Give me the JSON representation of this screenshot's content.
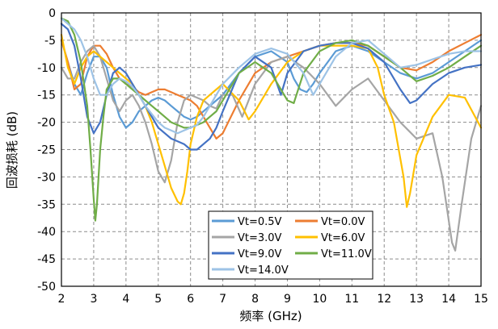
{
  "chart_data": {
    "type": "line",
    "title": "",
    "xlabel": "频率 (GHz)",
    "ylabel": "回波损耗 (dB)",
    "xlim": [
      2,
      15
    ],
    "ylim": [
      -50,
      0
    ],
    "xticks": [
      2,
      3,
      4,
      5,
      6,
      7,
      8,
      9,
      10,
      11,
      12,
      13,
      14,
      15
    ],
    "yticks": [
      0,
      -5,
      -10,
      -15,
      -20,
      -25,
      -30,
      -35,
      -40,
      -45,
      -50
    ],
    "grid": true,
    "legend_position": "bottom-center",
    "series": [
      {
        "name": "Vt=0.5V",
        "color": "#5b9bd5",
        "x": [
          2.0,
          2.2,
          2.4,
          2.6,
          2.8,
          3.0,
          3.2,
          3.4,
          3.6,
          3.8,
          4.0,
          4.2,
          4.4,
          4.6,
          4.8,
          5.0,
          5.2,
          5.4,
          5.6,
          5.8,
          6.0,
          6.2,
          6.4,
          6.6,
          6.8,
          7.0,
          7.5,
          8.0,
          8.5,
          9.0,
          9.2,
          9.4,
          9.6,
          9.8,
          10.0,
          10.5,
          11.0,
          11.5,
          12.0,
          12.5,
          13.0,
          13.5,
          14.0,
          14.5,
          15.0
        ],
        "y": [
          -5,
          -9,
          -13,
          -15,
          -11,
          -8,
          -8,
          -10,
          -15,
          -19,
          -21,
          -20,
          -18,
          -17,
          -16,
          -15.5,
          -16,
          -17,
          -18,
          -19,
          -19.5,
          -19,
          -18,
          -17,
          -16,
          -15,
          -11,
          -8,
          -7,
          -9,
          -12,
          -14,
          -14.5,
          -13,
          -11,
          -7,
          -6,
          -7,
          -9,
          -11,
          -12,
          -11,
          -9,
          -7,
          -5
        ]
      },
      {
        "name": "Vt=0.0V",
        "color": "#ed7d31",
        "x": [
          2.0,
          2.2,
          2.4,
          2.6,
          2.8,
          3.0,
          3.2,
          3.4,
          3.6,
          3.8,
          4.0,
          4.2,
          4.4,
          4.6,
          4.8,
          5.0,
          5.2,
          5.4,
          5.6,
          5.8,
          6.0,
          6.2,
          6.4,
          6.6,
          6.8,
          7.0,
          7.5,
          8.0,
          8.5,
          9.0,
          9.5,
          10.0,
          10.5,
          11.0,
          11.5,
          12.0,
          12.5,
          13.0,
          13.5,
          14.0,
          14.5,
          15.0
        ],
        "y": [
          -5,
          -9,
          -14,
          -13,
          -8,
          -6,
          -6,
          -7.5,
          -10,
          -12,
          -13,
          -13.5,
          -14.5,
          -15,
          -14.5,
          -14,
          -14,
          -14.5,
          -15,
          -15.5,
          -16,
          -17,
          -19,
          -21,
          -23,
          -22,
          -16,
          -11,
          -9,
          -8,
          -7,
          -6,
          -5.5,
          -5.5,
          -6,
          -8,
          -10,
          -10.5,
          -9,
          -7,
          -5.5,
          -4
        ]
      },
      {
        "name": "Vt=3.0V",
        "color": "#a5a5a5",
        "x": [
          2.0,
          2.2,
          2.4,
          2.6,
          2.8,
          3.0,
          3.2,
          3.4,
          3.6,
          3.8,
          4.0,
          4.2,
          4.4,
          4.6,
          4.8,
          5.0,
          5.2,
          5.4,
          5.6,
          5.8,
          6.0,
          6.2,
          6.4,
          6.6,
          6.8,
          7.0,
          7.3,
          7.6,
          8.0,
          8.5,
          9.0,
          9.5,
          10.0,
          10.5,
          11.0,
          11.5,
          12.0,
          12.5,
          13.0,
          13.5,
          13.8,
          14.0,
          14.1,
          14.2,
          14.4,
          14.7,
          15.0
        ],
        "y": [
          -10,
          -12,
          -12,
          -9,
          -7,
          -6,
          -8,
          -12,
          -16,
          -18,
          -16,
          -15,
          -17,
          -20,
          -24,
          -29,
          -31,
          -27,
          -20,
          -16,
          -15,
          -15.5,
          -16,
          -17,
          -17.5,
          -15,
          -15,
          -19,
          -13,
          -9,
          -8,
          -10,
          -13,
          -17,
          -14,
          -12,
          -16,
          -20,
          -23,
          -22,
          -30,
          -38,
          -42,
          -43.5,
          -35,
          -23,
          -17
        ]
      },
      {
        "name": "Vt=6.0V",
        "color": "#ffc000",
        "x": [
          2.0,
          2.2,
          2.4,
          2.6,
          2.8,
          3.0,
          3.2,
          3.4,
          3.6,
          3.8,
          4.0,
          4.2,
          4.4,
          4.6,
          4.8,
          5.0,
          5.2,
          5.4,
          5.6,
          5.7,
          5.8,
          5.9,
          6.0,
          6.2,
          6.4,
          6.6,
          6.8,
          7.0,
          7.5,
          7.8,
          8.0,
          8.5,
          9.0,
          9.5,
          10.0,
          10.5,
          11.0,
          11.5,
          11.8,
          12.0,
          12.3,
          12.6,
          12.7,
          12.8,
          13.0,
          13.5,
          14.0,
          14.5,
          15.0
        ],
        "y": [
          -4,
          -10,
          -13,
          -10,
          -8,
          -7,
          -8,
          -9,
          -10,
          -11,
          -12,
          -13,
          -15,
          -17,
          -20,
          -24,
          -28,
          -32,
          -34.5,
          -35,
          -33,
          -29,
          -24,
          -19,
          -16,
          -15,
          -14,
          -13,
          -16,
          -19.5,
          -18,
          -13,
          -9,
          -7,
          -6,
          -6,
          -6,
          -6.5,
          -10,
          -15,
          -20,
          -30,
          -35.5,
          -33,
          -26,
          -19,
          -15,
          -15.5,
          -21
        ]
      },
      {
        "name": "Vt=9.0V",
        "color": "#4472c4",
        "x": [
          2.0,
          2.2,
          2.4,
          2.6,
          2.8,
          3.0,
          3.2,
          3.4,
          3.6,
          3.8,
          4.0,
          4.2,
          4.4,
          4.6,
          4.8,
          5.0,
          5.2,
          5.4,
          5.6,
          5.8,
          6.0,
          6.2,
          6.4,
          6.6,
          6.8,
          7.0,
          7.5,
          8.0,
          8.5,
          8.8,
          9.0,
          9.5,
          10.0,
          10.5,
          11.0,
          11.5,
          12.0,
          12.5,
          12.8,
          13.0,
          13.5,
          14.0,
          14.5,
          15.0
        ],
        "y": [
          -2,
          -3,
          -6,
          -12,
          -19,
          -22,
          -20,
          -15,
          -11,
          -10,
          -11,
          -13,
          -15,
          -17,
          -19,
          -21,
          -22,
          -23,
          -23.5,
          -24,
          -25,
          -25,
          -24,
          -23,
          -21,
          -18,
          -11,
          -8,
          -10,
          -15,
          -11,
          -7,
          -6,
          -5.5,
          -5.5,
          -6.5,
          -9,
          -14,
          -16.5,
          -16,
          -13,
          -11,
          -10,
          -9.5
        ]
      },
      {
        "name": "Vt=11.0V",
        "color": "#70ad47",
        "x": [
          2.0,
          2.2,
          2.4,
          2.6,
          2.8,
          2.9,
          3.0,
          3.05,
          3.1,
          3.2,
          3.3,
          3.4,
          3.6,
          3.8,
          4.0,
          4.2,
          4.4,
          4.6,
          4.8,
          5.0,
          5.2,
          5.4,
          5.6,
          5.8,
          6.0,
          6.2,
          6.4,
          6.6,
          6.8,
          7.0,
          7.5,
          8.0,
          8.5,
          9.0,
          9.2,
          9.5,
          10.0,
          10.5,
          11.0,
          11.5,
          12.0,
          12.5,
          13.0,
          13.5,
          14.0,
          14.5,
          15.0
        ],
        "y": [
          -1,
          -1.5,
          -4,
          -9,
          -17,
          -25,
          -34,
          -38,
          -35,
          -25,
          -19,
          -14,
          -12,
          -12,
          -13,
          -14,
          -15,
          -16,
          -17,
          -18,
          -19,
          -20,
          -20.5,
          -21,
          -21,
          -20.5,
          -20,
          -19,
          -18,
          -16,
          -11,
          -9,
          -11,
          -16,
          -16.5,
          -11,
          -7,
          -5.5,
          -5,
          -6,
          -8,
          -10,
          -12.5,
          -11.5,
          -10,
          -8,
          -6
        ]
      },
      {
        "name": "Vt=14.0V",
        "color": "#9dc3e6",
        "x": [
          2.0,
          2.2,
          2.4,
          2.6,
          2.8,
          3.0,
          3.2,
          3.4,
          3.6,
          3.8,
          4.0,
          4.2,
          4.4,
          4.6,
          4.8,
          5.0,
          5.2,
          5.4,
          5.6,
          5.8,
          6.0,
          6.2,
          6.4,
          6.6,
          6.8,
          7.0,
          7.5,
          8.0,
          8.5,
          9.0,
          9.5,
          9.8,
          10.0,
          10.5,
          11.0,
          11.5,
          12.0,
          12.5,
          13.0,
          13.5,
          14.0,
          14.5,
          15.0
        ],
        "y": [
          -1,
          -2,
          -3,
          -5,
          -8,
          -12,
          -15,
          -15,
          -13,
          -12,
          -12.5,
          -13.5,
          -15,
          -17,
          -18.5,
          -20,
          -21,
          -21.5,
          -22,
          -21.5,
          -21,
          -20.5,
          -19,
          -17,
          -15,
          -13,
          -10,
          -7.5,
          -6.5,
          -7.5,
          -11,
          -15,
          -13,
          -8,
          -5.5,
          -5,
          -7.5,
          -10,
          -9.5,
          -8.5,
          -7.5,
          -7,
          -7
        ]
      }
    ]
  }
}
